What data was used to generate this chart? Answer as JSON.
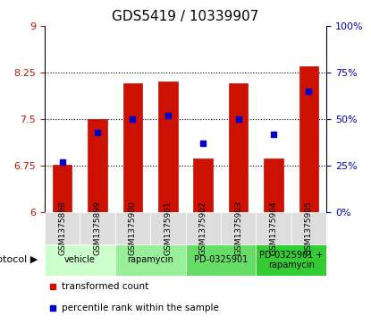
{
  "title": "GDS5419 / 10339907",
  "samples": [
    "GSM1375898",
    "GSM1375899",
    "GSM1375900",
    "GSM1375901",
    "GSM1375902",
    "GSM1375903",
    "GSM1375904",
    "GSM1375905"
  ],
  "transformed_count": [
    6.76,
    7.5,
    8.07,
    8.1,
    6.87,
    8.08,
    6.87,
    8.35
  ],
  "percentile_rank": [
    0.27,
    0.43,
    0.5,
    0.52,
    0.37,
    0.5,
    0.42,
    0.65
  ],
  "ylim_left": [
    6.0,
    9.0
  ],
  "ylim_right": [
    0,
    1.0
  ],
  "yticks_left": [
    6.0,
    6.75,
    7.5,
    8.25,
    9.0
  ],
  "ytick_labels_left": [
    "6",
    "6.75",
    "7.5",
    "8.25",
    "9"
  ],
  "yticks_right": [
    0,
    0.25,
    0.5,
    0.75,
    1.0
  ],
  "ytick_labels_right": [
    "0%",
    "25%",
    "50%",
    "75%",
    "100%"
  ],
  "hlines": [
    6.75,
    7.5,
    8.25
  ],
  "bar_color": "#cc1100",
  "dot_color": "#0000cc",
  "bar_baseline": 6.0,
  "protocols": [
    "vehicle",
    "vehicle",
    "rapamycin",
    "rapamycin",
    "PD-0325901",
    "PD-0325901",
    "PD-0325901 +\nrapamycin",
    "PD-0325901 +\nrapamycin"
  ],
  "protocol_groups": [
    {
      "label": "vehicle",
      "indices": [
        0,
        1
      ],
      "color": "#ccffcc"
    },
    {
      "label": "rapamycin",
      "indices": [
        2,
        3
      ],
      "color": "#99ee99"
    },
    {
      "label": "PD-0325901",
      "indices": [
        4,
        5
      ],
      "color": "#66dd66"
    },
    {
      "label": "PD-0325901 +\nrapamycin",
      "indices": [
        6,
        7
      ],
      "color": "#33cc33"
    }
  ],
  "bg_gray": "#dddddd",
  "title_fontsize": 11,
  "tick_fontsize": 8,
  "label_fontsize": 8
}
